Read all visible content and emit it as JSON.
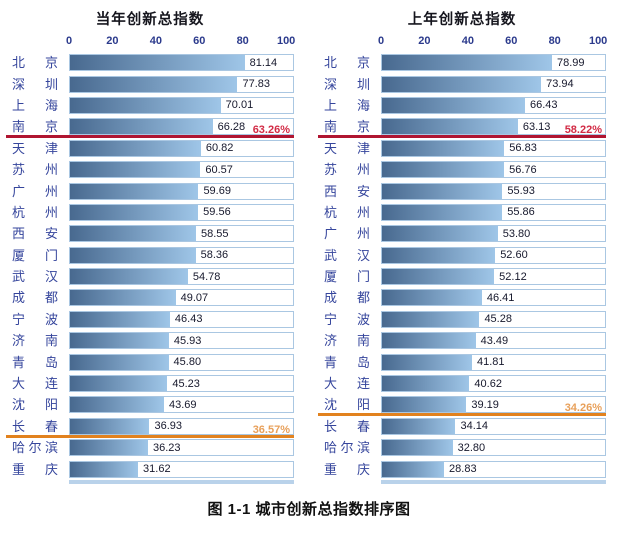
{
  "caption": "图 1-1 城市创新总指数排序图",
  "colors": {
    "bar_gradient_start": "#48698f",
    "bar_gradient_end": "#9fc6e8",
    "track_border": "#aac7e2",
    "city_label": "#35459c",
    "tick_label": "#2b3a8c",
    "value_label": "#16182c",
    "red_line": "#b01531",
    "red_label": "#d22b45",
    "orange_line": "#e2821e",
    "orange_label": "#e8a05a",
    "floor_strip": "#b9d2ea"
  },
  "chart_data": [
    {
      "type": "bar",
      "orientation": "horizontal",
      "title": "当年创新总指数",
      "xlabel": "",
      "ylabel": "",
      "xlim": [
        0,
        100
      ],
      "x_ticks": [
        0,
        20,
        40,
        60,
        80,
        100
      ],
      "grid": false,
      "legend": false,
      "categories": [
        "北京",
        "深圳",
        "上海",
        "南京",
        "天津",
        "苏州",
        "广州",
        "杭州",
        "西安",
        "厦门",
        "武汉",
        "成都",
        "宁波",
        "济南",
        "青岛",
        "大连",
        "沈阳",
        "长春",
        "哈尔滨",
        "重庆"
      ],
      "values": [
        81.14,
        77.83,
        70.01,
        66.28,
        60.82,
        60.57,
        59.69,
        59.56,
        58.55,
        58.36,
        54.78,
        49.07,
        46.43,
        45.93,
        45.8,
        45.23,
        43.69,
        36.93,
        36.23,
        31.62
      ],
      "threshold_lines": [
        {
          "label": "63.26%",
          "after_category": "南京",
          "after_index": 3,
          "color_key": "red"
        },
        {
          "label": "36.57%",
          "after_category": "长春",
          "after_index": 17,
          "color_key": "orange"
        }
      ]
    },
    {
      "type": "bar",
      "orientation": "horizontal",
      "title": "上年创新总指数",
      "xlabel": "",
      "ylabel": "",
      "xlim": [
        0,
        100
      ],
      "x_ticks": [
        0,
        20,
        40,
        60,
        80,
        100
      ],
      "grid": false,
      "legend": false,
      "categories": [
        "北京",
        "深圳",
        "上海",
        "南京",
        "天津",
        "苏州",
        "西安",
        "杭州",
        "广州",
        "武汉",
        "厦门",
        "成都",
        "宁波",
        "济南",
        "青岛",
        "大连",
        "沈阳",
        "长春",
        "哈尔滨",
        "重庆"
      ],
      "values": [
        78.99,
        73.94,
        66.43,
        63.13,
        56.83,
        56.76,
        55.93,
        55.86,
        53.8,
        52.6,
        52.12,
        46.41,
        45.28,
        43.49,
        41.81,
        40.62,
        39.19,
        34.14,
        32.8,
        28.83
      ],
      "threshold_lines": [
        {
          "label": "58.22%",
          "after_category": "南京",
          "after_index": 3,
          "color_key": "red"
        },
        {
          "label": "34.26%",
          "after_category": "沈阳",
          "after_index": 16,
          "color_key": "orange"
        }
      ]
    }
  ]
}
